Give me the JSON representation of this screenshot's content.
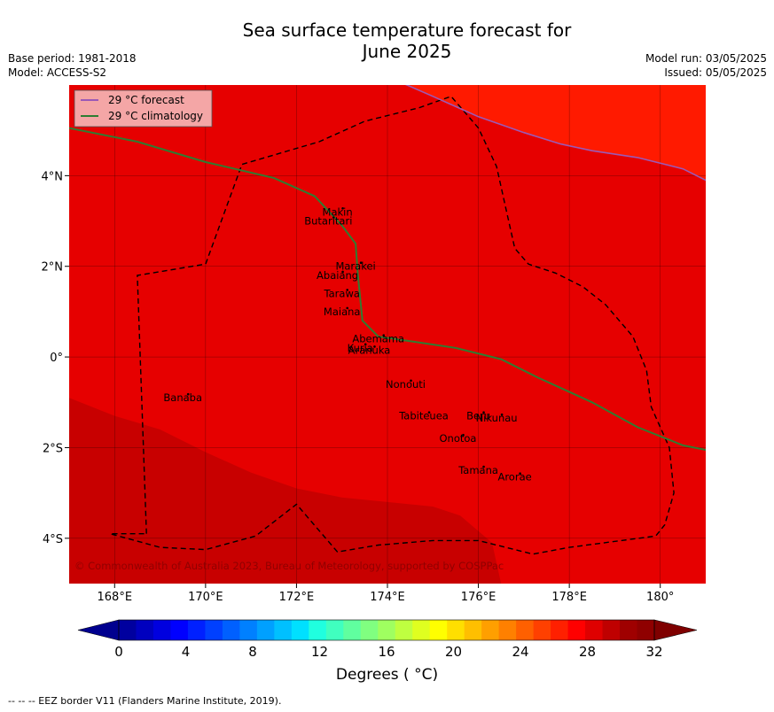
{
  "header": {
    "title_line1": "Sea surface temperature forecast for",
    "title_line2": "June 2025",
    "base_period": "Base period: 1981-2018",
    "model": "Model: ACCESS-S2",
    "model_run": "Model run: 03/05/2025",
    "issued": "Issued: 05/05/2025"
  },
  "map": {
    "lon_range": [
      167,
      181
    ],
    "lat_range": [
      -5,
      6
    ],
    "x_ticks": [
      "168°E",
      "170°E",
      "172°E",
      "174°E",
      "176°E",
      "178°E",
      "180°"
    ],
    "x_tick_values": [
      168,
      170,
      172,
      174,
      176,
      178,
      180
    ],
    "y_ticks": [
      "4°N",
      "2°N",
      "0°",
      "2°S",
      "4°S"
    ],
    "y_tick_values": [
      4,
      2,
      0,
      -2,
      -4
    ],
    "grid": true,
    "legend": {
      "placement": "top-left",
      "forecast_label": "29 °C  forecast",
      "climatology_label": "29 °C  climatology",
      "forecast_color": "#9b59b6",
      "climatology_color": "#2e7d32"
    },
    "copyright": "© Commonwealth of Australia 2023, Bureau of Meteorology, supported by COSPPac",
    "fill_colors": {
      "cool": "#c80000",
      "mid": "#e60000",
      "warm": "#ff1a00"
    },
    "islands": [
      {
        "name": "Makin",
        "lon": 172.9,
        "lat": 3.2
      },
      {
        "name": "Butaritari",
        "lon": 172.7,
        "lat": 3.0
      },
      {
        "name": "Marakei",
        "lon": 173.3,
        "lat": 2.0
      },
      {
        "name": "Abaiang",
        "lon": 172.9,
        "lat": 1.8
      },
      {
        "name": "Tarawa",
        "lon": 173.0,
        "lat": 1.4
      },
      {
        "name": "Maiana",
        "lon": 173.0,
        "lat": 1.0
      },
      {
        "name": "Abemama",
        "lon": 173.8,
        "lat": 0.4
      },
      {
        "name": "Kuria",
        "lon": 173.4,
        "lat": 0.2
      },
      {
        "name": "Aranuka",
        "lon": 173.6,
        "lat": 0.15
      },
      {
        "name": "Nonouti",
        "lon": 174.4,
        "lat": -0.6
      },
      {
        "name": "Banaba",
        "lon": 169.5,
        "lat": -0.9
      },
      {
        "name": "Tabiteuea",
        "lon": 174.8,
        "lat": -1.3
      },
      {
        "name": "Beru",
        "lon": 176.0,
        "lat": -1.3
      },
      {
        "name": "Nikunau",
        "lon": 176.4,
        "lat": -1.35
      },
      {
        "name": "Onotoa",
        "lon": 175.55,
        "lat": -1.8
      },
      {
        "name": "Tamana",
        "lon": 176.0,
        "lat": -2.5
      },
      {
        "name": "Arorae",
        "lon": 176.8,
        "lat": -2.65
      }
    ],
    "climatology_29c_line": [
      [
        167,
        5.05
      ],
      [
        168.5,
        4.75
      ],
      [
        170,
        4.3
      ],
      [
        171.5,
        3.95
      ],
      [
        172.4,
        3.55
      ],
      [
        173.0,
        2.9
      ],
      [
        173.3,
        2.5
      ],
      [
        173.35,
        1.8
      ],
      [
        173.45,
        0.8
      ],
      [
        173.8,
        0.45
      ],
      [
        174.5,
        0.35
      ],
      [
        175.5,
        0.2
      ],
      [
        176.5,
        -0.05
      ],
      [
        177.3,
        -0.45
      ],
      [
        178.5,
        -1.0
      ],
      [
        179.5,
        -1.55
      ],
      [
        180.5,
        -1.95
      ],
      [
        181,
        -2.05
      ]
    ],
    "forecast_29c_line": [
      [
        174.2,
        6.1
      ],
      [
        175,
        5.75
      ],
      [
        176,
        5.3
      ],
      [
        177,
        4.95
      ],
      [
        177.8,
        4.7
      ],
      [
        178.5,
        4.55
      ],
      [
        179.5,
        4.4
      ],
      [
        180.5,
        4.15
      ],
      [
        181,
        3.9
      ]
    ],
    "eez_border": [
      [
        168.7,
        -3.9
      ],
      [
        168.5,
        1.8
      ],
      [
        170.0,
        2.05
      ],
      [
        170.8,
        4.25
      ],
      [
        172.5,
        4.75
      ],
      [
        173.5,
        5.2
      ],
      [
        174.7,
        5.5
      ],
      [
        175.4,
        5.75
      ],
      [
        176.0,
        5.05
      ],
      [
        176.4,
        4.2
      ],
      [
        176.6,
        3.3
      ],
      [
        176.8,
        2.4
      ],
      [
        177.1,
        2.05
      ],
      [
        177.7,
        1.85
      ],
      [
        178.3,
        1.55
      ],
      [
        178.8,
        1.15
      ],
      [
        179.4,
        0.45
      ],
      [
        179.7,
        -0.3
      ],
      [
        179.8,
        -1.1
      ],
      [
        180.2,
        -2.0
      ],
      [
        180.3,
        -3.0
      ],
      [
        180.1,
        -3.7
      ],
      [
        179.9,
        -3.95
      ],
      [
        178.0,
        -4.2
      ],
      [
        177.2,
        -4.35
      ],
      [
        176.0,
        -4.05
      ],
      [
        175.0,
        -4.05
      ],
      [
        173.8,
        -4.15
      ],
      [
        172.9,
        -4.3
      ],
      [
        172.0,
        -3.25
      ],
      [
        171.1,
        -3.95
      ],
      [
        170.0,
        -4.25
      ],
      [
        169.0,
        -4.2
      ],
      [
        167.9,
        -3.9
      ]
    ],
    "cool_region": [
      [
        167,
        -0.9
      ],
      [
        168,
        -1.3
      ],
      [
        169,
        -1.6
      ],
      [
        170,
        -2.1
      ],
      [
        171,
        -2.55
      ],
      [
        172,
        -2.9
      ],
      [
        173,
        -3.1
      ],
      [
        174,
        -3.2
      ],
      [
        175,
        -3.3
      ],
      [
        175.6,
        -3.5
      ],
      [
        176.3,
        -4.1
      ],
      [
        176.5,
        -5.0
      ],
      [
        167,
        -5.0
      ]
    ],
    "warm_region": [
      [
        174.2,
        6.1
      ],
      [
        175,
        5.75
      ],
      [
        176,
        5.3
      ],
      [
        177,
        4.95
      ],
      [
        177.8,
        4.7
      ],
      [
        178.5,
        4.55
      ],
      [
        179.5,
        4.4
      ],
      [
        180.5,
        4.15
      ],
      [
        181,
        3.9
      ],
      [
        181,
        6.1
      ]
    ]
  },
  "colorbar": {
    "min": 0,
    "max": 32,
    "ticks": [
      "0",
      "4",
      "8",
      "12",
      "16",
      "20",
      "24",
      "28",
      "32"
    ],
    "tick_values": [
      0,
      4,
      8,
      12,
      16,
      20,
      24,
      28,
      32
    ],
    "label": "Degrees ( °C)",
    "under_color": "#00008f",
    "over_color": "#7f0000",
    "colors": [
      "#00009f",
      "#0000bf",
      "#0000df",
      "#0000ff",
      "#0020ff",
      "#0040ff",
      "#0060ff",
      "#0080ff",
      "#00a0ff",
      "#00c0ff",
      "#00e0ff",
      "#20ffdf",
      "#40ffbf",
      "#60ff9f",
      "#80ff80",
      "#9fff60",
      "#bfff40",
      "#dfff20",
      "#ffff00",
      "#ffdf00",
      "#ffbf00",
      "#ff9f00",
      "#ff8000",
      "#ff6000",
      "#ff4000",
      "#ff2000",
      "#ff0000",
      "#df0000",
      "#bf0000",
      "#9f0000",
      "#8f0000"
    ]
  },
  "footer": {
    "eez_note": "--  --  -- EEZ border V11 (Flanders Marine Institute, 2019)."
  }
}
